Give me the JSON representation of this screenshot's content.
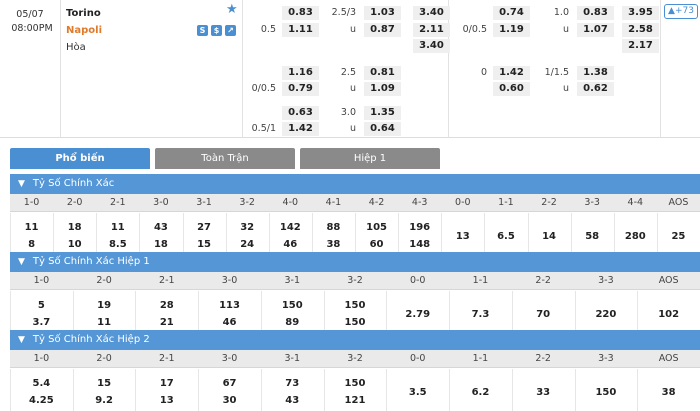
{
  "match": {
    "date": "05/07",
    "time": "08:00PM",
    "home": "Torino",
    "away": "Napoli",
    "draw": "Hòa",
    "badges": [
      "S",
      "$",
      "↗"
    ],
    "more_count": "+73"
  },
  "odds_ft": [
    {
      "h_line": "",
      "h_home": "0.83",
      "h_away": "1.11",
      "h_away_line": "0.5",
      "ou_line": "2.5/3",
      "ou_over": "1.03",
      "ou_under": "0.87",
      "ou_u": "u",
      "x_home": "3.40",
      "x_away": "2.11",
      "x_draw": "3.40"
    },
    {
      "h_line": "",
      "h_home": "1.16",
      "h_away": "0.79",
      "h_away_line": "0/0.5",
      "ou_line": "2.5",
      "ou_over": "0.81",
      "ou_under": "1.09",
      "ou_u": "u"
    },
    {
      "h_line": "",
      "h_home": "0.63",
      "h_away": "1.42",
      "h_away_line": "0.5/1",
      "ou_line": "3.0",
      "ou_over": "1.35",
      "ou_under": "0.64",
      "ou_u": "u"
    }
  ],
  "odds_ht": [
    {
      "h_away_line": "0/0.5",
      "h_home": "0.74",
      "h_away": "1.19",
      "ou_line": "1.0",
      "ou_over": "0.83",
      "ou_under": "1.07",
      "ou_u": "u",
      "x_home": "3.95",
      "x_away": "2.58",
      "x_draw": "2.17"
    },
    {
      "h_away_line": "0",
      "h_home": "1.42",
      "h_away": "0.60",
      "ou_line": "1/1.5",
      "ou_over": "1.38",
      "ou_under": "0.62",
      "ou_u": "u"
    }
  ],
  "tabs": [
    "Phổ biến",
    "Toàn Trận",
    "Hiệp 1"
  ],
  "sections": [
    {
      "title": "Tỷ Số Chính Xác",
      "headers": [
        "1-0",
        "2-0",
        "2-1",
        "3-0",
        "3-1",
        "3-2",
        "4-0",
        "4-1",
        "4-2",
        "4-3",
        "0-0",
        "1-1",
        "2-2",
        "3-3",
        "4-4",
        "AOS"
      ],
      "home": [
        "11",
        "18",
        "11",
        "43",
        "27",
        "32",
        "142",
        "88",
        "105",
        "196"
      ],
      "away": [
        "8",
        "10",
        "8.5",
        "18",
        "15",
        "24",
        "46",
        "38",
        "60",
        "148"
      ],
      "single": [
        "13",
        "6.5",
        "14",
        "58",
        "280",
        "25"
      ]
    },
    {
      "title": "Tỷ Số Chính Xác Hiệp 1",
      "headers": [
        "1-0",
        "2-0",
        "2-1",
        "3-0",
        "3-1",
        "3-2",
        "0-0",
        "1-1",
        "2-2",
        "3-3",
        "AOS"
      ],
      "home": [
        "5",
        "19",
        "28",
        "113",
        "150",
        "150"
      ],
      "away": [
        "3.7",
        "11",
        "21",
        "46",
        "89",
        "150"
      ],
      "single": [
        "2.79",
        "7.3",
        "70",
        "220",
        "102"
      ]
    },
    {
      "title": "Tỷ Số Chính Xác Hiệp 2",
      "headers": [
        "1-0",
        "2-0",
        "2-1",
        "3-0",
        "3-1",
        "3-2",
        "0-0",
        "1-1",
        "2-2",
        "3-3",
        "AOS"
      ],
      "home": [
        "5.4",
        "15",
        "17",
        "67",
        "73",
        "150"
      ],
      "away": [
        "4.25",
        "9.2",
        "13",
        "30",
        "43",
        "121"
      ],
      "single": [
        "3.5",
        "6.2",
        "33",
        "150",
        "38"
      ]
    }
  ]
}
